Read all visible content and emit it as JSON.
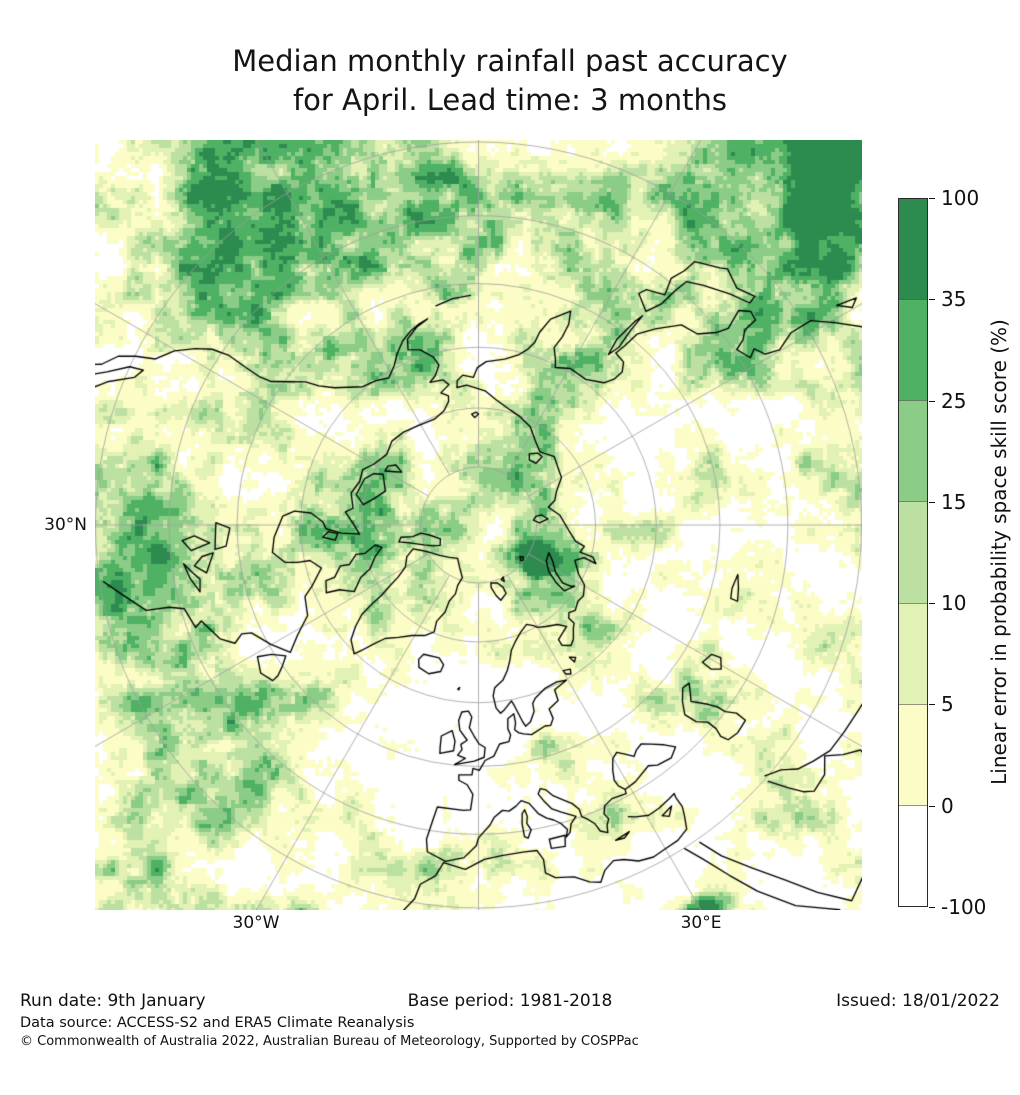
{
  "title": {
    "line1": "Median monthly rainfall past accuracy",
    "line2": "for April. Lead time: 3 months"
  },
  "map": {
    "lat_label": "30°N",
    "lon_label_west": "30°W",
    "lon_label_east": "30°E"
  },
  "colorbar": {
    "label": "Linear error in probability space skill score (%)",
    "ticks": [
      "100",
      "35",
      "25",
      "15",
      "10",
      "5",
      "0",
      "-100"
    ],
    "segments": [
      {
        "range": "35 to 100",
        "color": "#2e8b50"
      },
      {
        "range": "25 to 35",
        "color": "#4fb164"
      },
      {
        "range": "15 to 25",
        "color": "#8bcc87"
      },
      {
        "range": "10 to 15",
        "color": "#bce0a2"
      },
      {
        "range": "5 to 10",
        "color": "#e2f1b4"
      },
      {
        "range": "0 to 5",
        "color": "#fcfdc6"
      },
      {
        "range": "-100 to 0",
        "color": "#ffffff"
      }
    ]
  },
  "footer": {
    "run_date": "Run date: 9th January",
    "base_period": "Base period: 1981-2018",
    "issued": "Issued: 18/01/2022",
    "data_source": "Data source: ACCESS-S2 and ERA5 Climate Reanalysis",
    "copyright": "© Commonwealth of Australia 2022, Australian Bureau of Meteorology, Supported by COSPPac"
  },
  "chart_data": {
    "type": "heatmap",
    "title": "Median monthly rainfall past accuracy for April. Lead time: 3 months",
    "colorbar_label": "Linear error in probability space skill score (%)",
    "bins": [
      -100,
      0,
      5,
      10,
      15,
      25,
      35,
      100
    ],
    "bin_colors": [
      "#ffffff",
      "#fcfdc6",
      "#e2f1b4",
      "#bce0a2",
      "#8bcc87",
      "#4fb164",
      "#2e8b50"
    ],
    "map_projection": "North polar stereographic, pole centered, 0° meridian toward bottom, extent ~30°N",
    "graticule": {
      "latitude_circles_deg": [
        80,
        70,
        60,
        50,
        40,
        30
      ],
      "meridian_spacing_deg": 30
    },
    "visible_labels": [
      "30°N",
      "30°W",
      "30°E"
    ],
    "legend_position": "right"
  }
}
